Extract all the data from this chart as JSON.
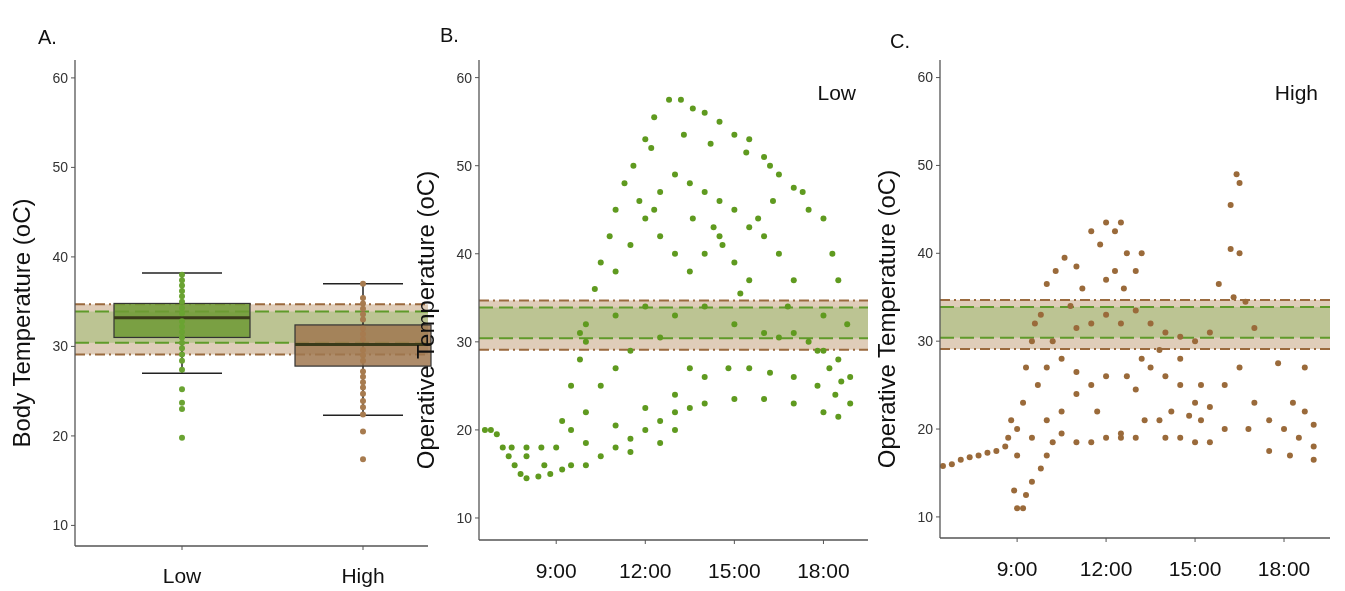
{
  "chart_data": [
    {
      "type": "box",
      "title": "A.",
      "ylabel": "Body Temperature (oC)",
      "categories": [
        "Low",
        "High"
      ],
      "boxes": [
        {
          "low": 27,
          "q1": 31,
          "median": 33.2,
          "q3": 34.8,
          "high": 38.2
        },
        {
          "low": 22.3,
          "q1": 27.8,
          "median": 30.2,
          "q3": 32.4,
          "high": 37
        }
      ],
      "colors": [
        "#6f9a35",
        "#a07850"
      ],
      "series": [
        {
          "type": "scatter",
          "color": "#6aa332",
          "x": [
            "Low",
            "Low",
            "Low",
            "Low",
            "Low",
            "Low",
            "Low",
            "Low",
            "Low",
            "Low",
            "Low",
            "Low",
            "Low",
            "Low",
            "Low",
            "Low",
            "Low",
            "Low",
            "Low",
            "Low",
            "Low"
          ],
          "values": [
            38.0,
            37.4,
            36.8,
            36.2,
            35.6,
            35.0,
            34.3,
            33.7,
            32.8,
            32.2,
            31.6,
            31.0,
            30.4,
            29.8,
            29.1,
            28.4,
            27.4,
            25.2,
            23.7,
            23.0,
            19.8
          ]
        },
        {
          "type": "scatter",
          "color": "#a77b4f",
          "x": [
            "High",
            "High",
            "High",
            "High",
            "High",
            "High",
            "High",
            "High",
            "High",
            "High",
            "High",
            "High",
            "High",
            "High",
            "High",
            "High",
            "High",
            "High",
            "High",
            "High",
            "High",
            "High"
          ],
          "values": [
            37.0,
            35.4,
            34.8,
            34.2,
            33.6,
            33.0,
            32.0,
            31.4,
            30.8,
            29.6,
            29.0,
            28.4,
            27.2,
            26.6,
            26.0,
            25.4,
            24.7,
            23.9,
            23.2,
            22.4,
            20.5,
            17.4
          ]
        }
      ],
      "ylim": [
        7.7,
        62
      ],
      "yticks": [
        10,
        20,
        30,
        40,
        50,
        60
      ],
      "grid": false,
      "marker": "circle",
      "bands": [
        {
          "axis": "y",
          "from": 29.1,
          "to": 34.7,
          "color": "#dfcdb9"
        },
        {
          "axis": "y",
          "from": 30.4,
          "to": 33.9,
          "color": "#bcc493"
        }
      ],
      "ref_lines": [
        {
          "axis": "y",
          "value": 34.7,
          "color": "#9a6a3e",
          "line_style": "dotted"
        },
        {
          "axis": "y",
          "value": 29.1,
          "color": "#9a6a3e",
          "line_style": "dotted"
        },
        {
          "axis": "y",
          "value": 33.9,
          "color": "#5f9a2a",
          "line_style": "dashed"
        },
        {
          "axis": "y",
          "value": 30.4,
          "color": "#5f9a2a",
          "line_style": "dashed"
        }
      ]
    },
    {
      "type": "scatter",
      "title": "B.",
      "ylabel": "Operative Temperature (oC)",
      "annotations": [
        "Low"
      ],
      "series": [
        {
          "color": "#5f9a1f",
          "x": [
            6.6,
            6.8,
            7.0,
            7.2,
            7.4,
            7.6,
            7.8,
            8.0,
            8.4,
            8.8,
            7.5,
            8.0,
            8.5,
            9.0,
            8.0,
            8.6,
            9.2,
            9.5,
            10,
            10.5,
            11,
            11.5,
            12,
            12.5,
            13,
            13.5,
            14,
            15,
            16,
            17,
            18,
            18.5,
            18.9,
            18.9,
            18.5,
            18.0,
            17.5,
            9.5,
            10,
            10.5,
            11,
            11.5,
            9.2,
            9.5,
            9.8,
            10,
            10.3,
            10.5,
            10.8,
            11,
            11.3,
            11.6,
            12,
            12.3,
            12.8,
            13.2,
            13.6,
            14,
            14.5,
            15,
            15.5,
            16,
            16.5,
            17,
            17.5,
            18,
            18.3,
            18.5,
            11,
            11.5,
            12,
            12.5,
            13,
            13.5,
            14,
            14.5,
            15,
            15.5,
            16,
            16.5,
            17,
            12.5,
            13,
            13.5,
            14,
            14.5,
            15,
            15.5,
            13,
            14,
            15,
            16,
            16.5,
            17,
            11,
            12,
            12.5,
            13.5,
            14,
            14.8,
            15.5,
            16.2,
            17,
            17.8,
            18.4,
            10,
            9.8,
            13,
            12,
            11,
            10,
            11.5,
            12.5,
            13,
            12.2,
            13.3,
            14.2,
            15.4,
            16.2,
            17.3,
            11.8,
            12.3,
            13.6,
            14.3,
            15.8,
            16.3,
            17.8,
            18.2,
            18.6,
            16.8,
            18,
            18.8,
            15.2,
            14.6
          ],
          "values": [
            20,
            20,
            19.5,
            18,
            17,
            16,
            15,
            14.5,
            14.7,
            15,
            18,
            18,
            18,
            18,
            17,
            16,
            15.5,
            16,
            16,
            17,
            18,
            19,
            20,
            21,
            22,
            22.5,
            23,
            23.5,
            23.5,
            23,
            22,
            21.5,
            23,
            26,
            28,
            29,
            30,
            20,
            22,
            25,
            27,
            29,
            21,
            25,
            28,
            32,
            36,
            39,
            42,
            45,
            48,
            50,
            53,
            55.5,
            57.5,
            57.5,
            56.5,
            56,
            55,
            53.5,
            53,
            51,
            49,
            47.5,
            45,
            44,
            40,
            37,
            38,
            41,
            44,
            47,
            49,
            48,
            47,
            46,
            45,
            43,
            42,
            40,
            37,
            42,
            40,
            38,
            40,
            42,
            39,
            37,
            33,
            34,
            32,
            31,
            30.5,
            31,
            33,
            34,
            30.5,
            27,
            26,
            27,
            27,
            26.5,
            26,
            25,
            24,
            30,
            31,
            24,
            22.5,
            20.5,
            18.5,
            17.5,
            18.5,
            20,
            52,
            53.5,
            52.5,
            51.5,
            50,
            47,
            46,
            45,
            44,
            43,
            44,
            46,
            29,
            27,
            25.5,
            34,
            33,
            32,
            35.5,
            41
          ]
        }
      ],
      "xlim": [
        6.4,
        19.5
      ],
      "xticks": [
        {
          "value": 9,
          "label": "9:00"
        },
        {
          "value": 12,
          "label": "12:00"
        },
        {
          "value": 15,
          "label": "15:00"
        },
        {
          "value": 18,
          "label": "18:00"
        }
      ],
      "ylim": [
        7.5,
        62
      ],
      "yticks": [
        10,
        20,
        30,
        40,
        50,
        60
      ],
      "grid": false,
      "marker": "circle",
      "bands": [
        {
          "axis": "y",
          "from": 29.1,
          "to": 34.7,
          "color": "#dfcdb9"
        },
        {
          "axis": "y",
          "from": 30.4,
          "to": 33.9,
          "color": "#bcc493"
        }
      ],
      "ref_lines": [
        {
          "axis": "y",
          "value": 34.7,
          "color": "#9a6a3e",
          "line_style": "dotted"
        },
        {
          "axis": "y",
          "value": 29.1,
          "color": "#9a6a3e",
          "line_style": "dotted"
        },
        {
          "axis": "y",
          "value": 33.9,
          "color": "#5f9a2a",
          "line_style": "dashed"
        },
        {
          "axis": "y",
          "value": 30.4,
          "color": "#5f9a2a",
          "line_style": "dashed"
        }
      ]
    },
    {
      "type": "scatter",
      "title": "C.",
      "ylabel": "Operative Temperature (oC)",
      "annotations": [
        "High"
      ],
      "series": [
        {
          "color": "#9a6a3a",
          "x": [
            6.5,
            6.8,
            7.1,
            7.4,
            7.7,
            8.0,
            8.3,
            8.6,
            8.7,
            8.8,
            9.0,
            9.0,
            8.9,
            9.0,
            9.2,
            9.3,
            9.5,
            9.8,
            10.0,
            10.2,
            10.5,
            11,
            11.5,
            12,
            12.5,
            13,
            14,
            14.5,
            15,
            15.5,
            16,
            9.2,
            9.3,
            9.5,
            9.8,
            10,
            10.3,
            10.6,
            11,
            11.5,
            11.8,
            12,
            12.3,
            12.5,
            12.7,
            13,
            13.2,
            12,
            12.3,
            12.6,
            11.2,
            10.8,
            11,
            11.5,
            12,
            12.5,
            13,
            13.5,
            14,
            14.5,
            15,
            15.5,
            15.8,
            16.2,
            16.2,
            16.4,
            16.5,
            16.5,
            16.3,
            16.7,
            17,
            13.2,
            13.5,
            14,
            14.5,
            15,
            15.2,
            15.5,
            16,
            16.5,
            17,
            17.5,
            18,
            18.5,
            19,
            19,
            18.7,
            18.3,
            17.8,
            19.0,
            18.2,
            17.5,
            13,
            12.7,
            12,
            11.5,
            11,
            10.5,
            10,
            9.7,
            10.5,
            11,
            11.7,
            12.5,
            13.3,
            13.8,
            14.2,
            14.8,
            15.2,
            14.5,
            13.8,
            10,
            9.5,
            10.2,
            9.6,
            18.7,
            16.8
          ],
          "values": [
            15.8,
            16,
            16.5,
            16.8,
            17,
            17.3,
            17.5,
            18,
            19,
            21,
            20,
            17,
            13,
            11,
            11,
            12.5,
            14,
            15.5,
            17,
            18.5,
            19.5,
            18.5,
            18.5,
            19,
            19,
            19,
            19,
            19,
            18.5,
            18.5,
            20,
            23,
            27,
            30,
            33,
            36.5,
            38,
            39.5,
            38.5,
            42.5,
            41,
            43.5,
            42.5,
            43.5,
            40,
            38,
            40,
            37,
            38,
            36,
            36,
            34,
            31.5,
            32,
            33,
            32,
            33.5,
            32,
            31,
            30.5,
            30,
            31,
            36.5,
            40.5,
            45.5,
            49,
            48,
            40,
            35,
            34.5,
            31.5,
            28,
            27,
            26,
            25,
            23,
            21,
            22.5,
            25,
            27,
            23,
            21,
            20,
            19,
            18,
            20.5,
            22,
            23,
            27.5,
            16.5,
            17,
            17.5,
            24.5,
            26,
            26,
            25,
            26.5,
            28,
            27,
            25,
            22,
            24,
            22,
            19.5,
            21,
            21,
            22,
            21.5,
            25,
            28,
            29,
            21,
            19,
            30,
            32,
            27,
            20
          ]
        }
      ],
      "xlim": [
        6.4,
        19.55
      ],
      "xticks": [
        {
          "value": 9,
          "label": "9:00"
        },
        {
          "value": 12,
          "label": "12:00"
        },
        {
          "value": 15,
          "label": "15:00"
        },
        {
          "value": 18,
          "label": "18:00"
        }
      ],
      "ylim": [
        7.6,
        62
      ],
      "yticks": [
        10,
        20,
        30,
        40,
        50,
        60
      ],
      "grid": false,
      "marker": "circle",
      "bands": [
        {
          "axis": "y",
          "from": 29.1,
          "to": 34.7,
          "color": "#dfcdb9"
        },
        {
          "axis": "y",
          "from": 30.4,
          "to": 33.9,
          "color": "#bcc493"
        }
      ],
      "ref_lines": [
        {
          "axis": "y",
          "value": 34.7,
          "color": "#9a6a3e",
          "line_style": "dotted"
        },
        {
          "axis": "y",
          "value": 29.1,
          "color": "#9a6a3e",
          "line_style": "dotted"
        },
        {
          "axis": "y",
          "value": 33.9,
          "color": "#5f9a2a",
          "line_style": "dashed"
        },
        {
          "axis": "y",
          "value": 30.4,
          "color": "#5f9a2a",
          "line_style": "dashed"
        }
      ]
    }
  ]
}
